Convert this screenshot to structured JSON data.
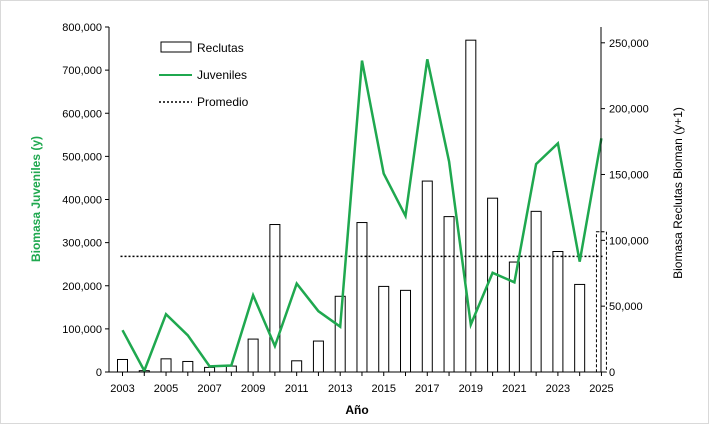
{
  "chart_data": {
    "type": "bar+line",
    "xlabel": "Año",
    "ylabel_left": "Biomasa Juveniles (y)",
    "ylabel_right": "Biomasa Reclutas Bioman (y+1)",
    "ylim_left": [
      0,
      800000
    ],
    "ylim_right": [
      0,
      262000
    ],
    "yticks_left": [
      "0",
      "100,000",
      "200,000",
      "300,000",
      "400,000",
      "500,000",
      "600,000",
      "700,000",
      "800,000"
    ],
    "yticks_right": [
      "0",
      "50,000",
      "100,000",
      "150,000",
      "200,000",
      "250,000"
    ],
    "xticks": [
      "2003",
      "2005",
      "2007",
      "2009",
      "2011",
      "2013",
      "2015",
      "2017",
      "2019",
      "2021",
      "2023",
      "2025"
    ],
    "x": [
      2003,
      2004,
      2005,
      2006,
      2007,
      2008,
      2009,
      2010,
      2011,
      2012,
      2013,
      2014,
      2015,
      2016,
      2017,
      2018,
      2019,
      2020,
      2021,
      2022,
      2023,
      2024,
      2025
    ],
    "series": [
      {
        "name": "Reclutas",
        "axis": "right",
        "type": "bar",
        "values": [
          9500,
          1000,
          10000,
          8000,
          3500,
          4500,
          25000,
          112000,
          8500,
          23500,
          57500,
          113500,
          65000,
          62000,
          145000,
          118000,
          252000,
          132000,
          83500,
          122000,
          91500,
          66500,
          106500
        ],
        "projected_last": true
      },
      {
        "name": "Juveniles",
        "axis": "left",
        "type": "line",
        "color": "#1fa84f",
        "values": [
          97000,
          3000,
          134000,
          85000,
          13000,
          15000,
          178000,
          60000,
          205000,
          141000,
          105000,
          722000,
          460000,
          362000,
          725000,
          488000,
          110000,
          230000,
          208000,
          482000,
          530000,
          256000,
          542000
        ]
      },
      {
        "name": "Promedio",
        "axis": "left",
        "type": "line",
        "style": "dotted",
        "value": 268000
      }
    ],
    "legend_position": "top-left",
    "grid": false
  }
}
